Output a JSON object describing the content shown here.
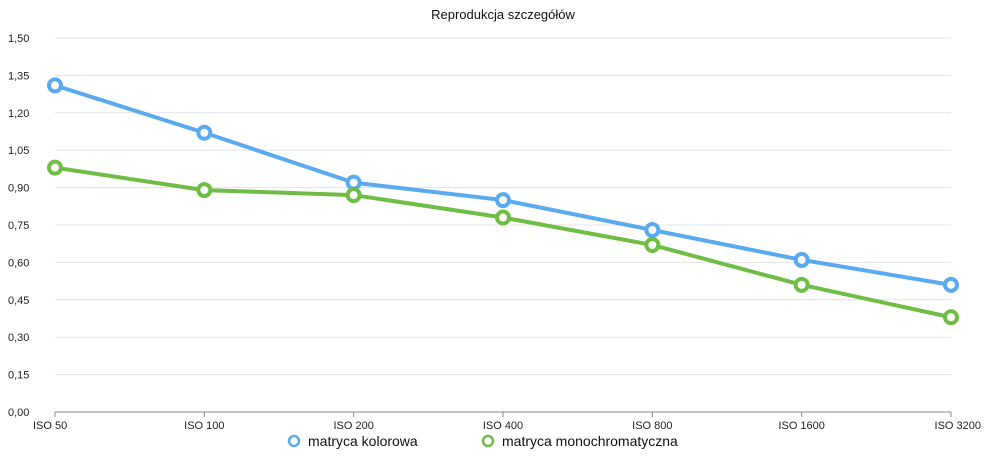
{
  "chart_data": {
    "type": "line",
    "title": "Reprodukcja szczegółów",
    "categories": [
      "ISO 50",
      "ISO 100",
      "ISO 200",
      "ISO 400",
      "ISO 800",
      "ISO 1600",
      "ISO 3200"
    ],
    "ylim": [
      0,
      1.5
    ],
    "yticks": [
      "0,00",
      "0,15",
      "0,30",
      "0,45",
      "0,60",
      "0,75",
      "0,90",
      "1,05",
      "1,20",
      "1,35",
      "1,50"
    ],
    "grid": true,
    "legend_position": "bottom",
    "series": [
      {
        "name": "matryca kolorowa",
        "color": "#5aaaf0",
        "values": [
          1.31,
          1.12,
          0.92,
          0.85,
          0.73,
          0.61,
          0.51
        ]
      },
      {
        "name": "matryca monochromatyczna",
        "color": "#6fbd45",
        "values": [
          0.98,
          0.89,
          0.87,
          0.78,
          0.67,
          0.51,
          0.38
        ]
      }
    ]
  }
}
